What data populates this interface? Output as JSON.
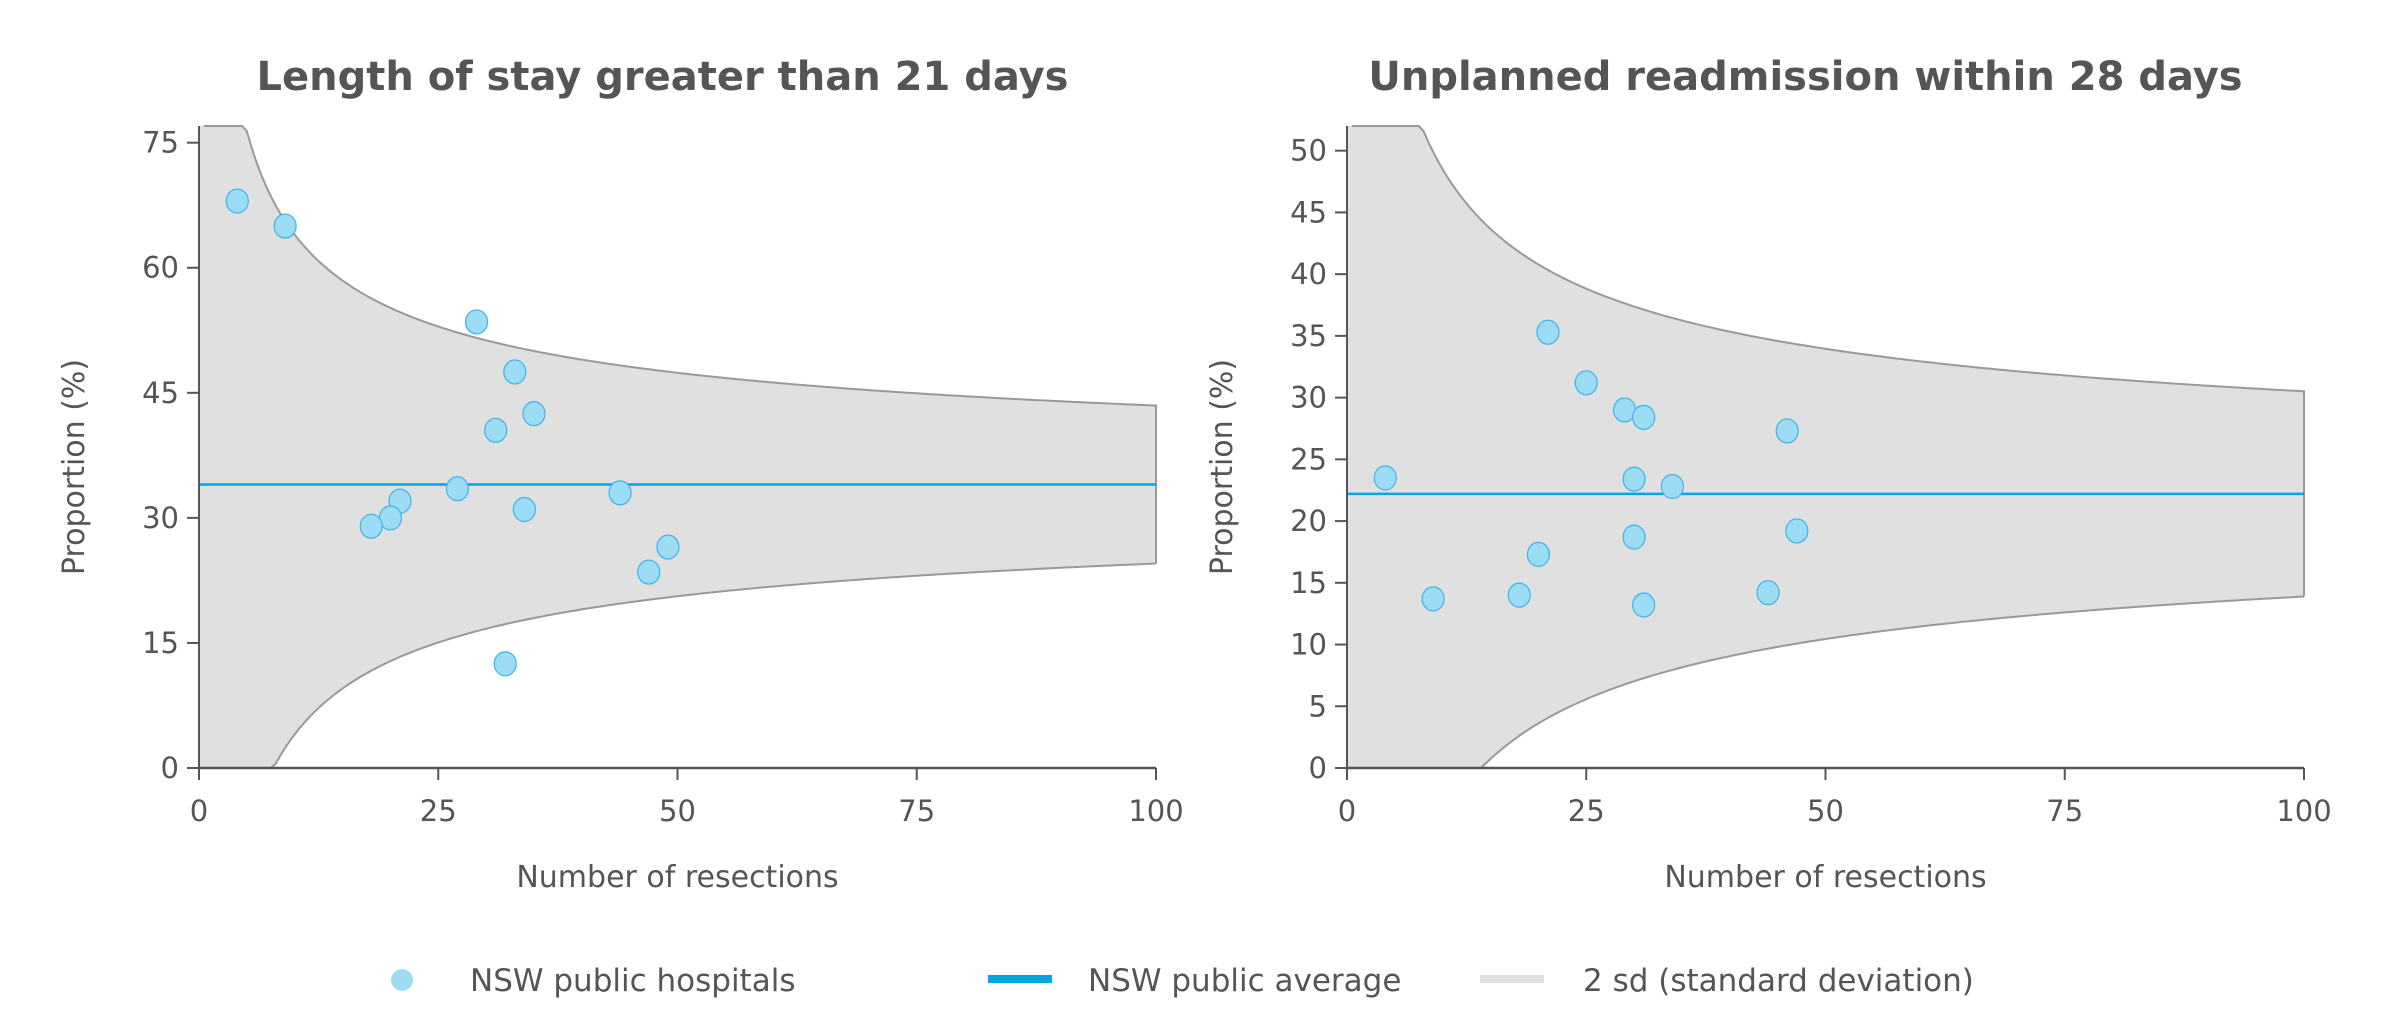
{
  "chart_data": [
    {
      "type": "scatter",
      "title": "Length of stay greater than 21 days",
      "xlabel": "Number of resections",
      "ylabel": "Proportion (%)",
      "xlim": [
        0,
        100
      ],
      "ylim": [
        0,
        77
      ],
      "xticks": [
        0,
        25,
        50,
        75,
        100
      ],
      "yticks": [
        0,
        15,
        30,
        45,
        60,
        75
      ],
      "grid": false,
      "average": 34,
      "series": [
        {
          "name": "NSW public hospitals",
          "x": [
            4,
            9,
            29,
            33,
            35,
            31,
            27,
            44,
            21,
            34,
            20,
            18,
            49,
            47,
            32
          ],
          "y": [
            68,
            65,
            53.5,
            47.5,
            42.5,
            40.5,
            33.5,
            33,
            32,
            31,
            30,
            29,
            26.5,
            23.5,
            12.5
          ]
        }
      ]
    },
    {
      "type": "scatter",
      "title": "Unplanned readmission within 28 days",
      "xlabel": "Number of resections",
      "ylabel": "Proportion (%)",
      "xlim": [
        0,
        100
      ],
      "ylim": [
        0,
        52
      ],
      "xticks": [
        0,
        25,
        50,
        75,
        100
      ],
      "yticks": [
        0,
        5,
        10,
        15,
        20,
        25,
        30,
        35,
        40,
        45,
        50
      ],
      "grid": false,
      "average": 22.2,
      "series": [
        {
          "name": "NSW public hospitals",
          "x": [
            4,
            21,
            25,
            29,
            31,
            46,
            30,
            34,
            30,
            47,
            20,
            9,
            18,
            31,
            44
          ],
          "y": [
            23.5,
            35.3,
            31.2,
            29,
            28.4,
            27.3,
            23.4,
            22.8,
            18.7,
            19.2,
            17.3,
            13.7,
            14,
            13.2,
            14.2
          ]
        }
      ]
    }
  ],
  "legend": {
    "placement": "bottom",
    "items": [
      {
        "label": "NSW public hospitals",
        "kind": "marker"
      },
      {
        "label": "NSW public average",
        "kind": "line"
      },
      {
        "label": "2 sd (standard deviation)",
        "kind": "band"
      }
    ]
  },
  "colors": {
    "marker_fill": "#9ddcf5",
    "marker_stroke": "#3cb4e6",
    "average_line": "#00a6e3",
    "band_fill": "#e0e0e0",
    "band_stroke": "#999999",
    "text": "#555555",
    "axis": "#555555"
  }
}
